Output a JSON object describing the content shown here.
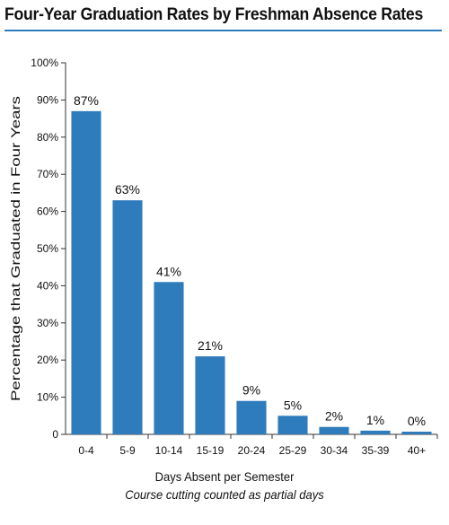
{
  "chart_data": {
    "type": "bar",
    "title": "Four-Year Graduation Rates by Freshman Absence Rates",
    "xlabel": "Days Absent per Semester",
    "xlabel_note": "Course cutting counted as partial days",
    "ylabel": "Percentage that Graduated in Four Years",
    "categories": [
      "0-4",
      "5-9",
      "10-14",
      "15-19",
      "20-24",
      "25-29",
      "30-34",
      "35-39",
      "40+"
    ],
    "values": [
      87,
      63,
      41,
      21,
      9,
      5,
      2,
      1,
      0
    ],
    "value_labels": [
      "87%",
      "63%",
      "41%",
      "21%",
      "9%",
      "5%",
      "2%",
      "1%",
      "0%"
    ],
    "ylim": [
      0,
      100
    ],
    "yticks": [
      0,
      10,
      20,
      30,
      40,
      50,
      60,
      70,
      80,
      90,
      100
    ],
    "ytick_labels": [
      "0",
      "10%",
      "20%",
      "30%",
      "40%",
      "50%",
      "60%",
      "70%",
      "80%",
      "90%",
      "100%"
    ],
    "bar_color": "#2f7cbd",
    "accent_color": "#2f7cbd",
    "grid": false,
    "legend": false
  }
}
